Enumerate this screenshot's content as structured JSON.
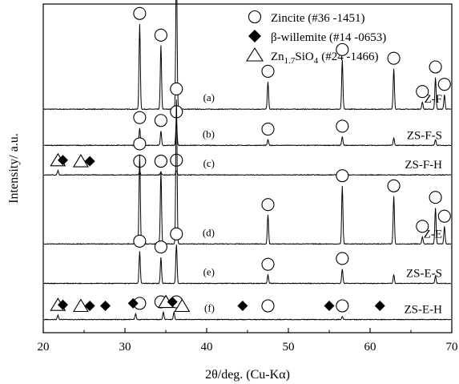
{
  "chart_data": {
    "type": "line",
    "xlabel": "2θ/deg. (Cu-Kα)",
    "ylabel": "Intensity/ a.u.",
    "xlim": [
      20,
      70
    ],
    "xticks": [
      20,
      30,
      40,
      50,
      60,
      70
    ],
    "grid": false,
    "legend_position": "top-right",
    "legend": [
      {
        "symbol": "circle",
        "name": "Zincite",
        "code": "(#36 -1451)"
      },
      {
        "symbol": "diamond",
        "name": "β-willemite",
        "code": "(#14 -0653)"
      },
      {
        "symbol": "triangle",
        "formula_main": "Zn",
        "formula_sub1": "1.7",
        "formula_mid": "SiO",
        "formula_sub2": "4",
        "code": "(#24 -1466)"
      }
    ],
    "zincite_peaks": [
      31.8,
      34.4,
      36.3,
      47.5,
      56.6,
      62.9,
      66.4,
      68.0,
      69.1
    ],
    "series": [
      {
        "label": "(a)",
        "name": "Z-F",
        "baseline": 0.68,
        "peaks": [
          [
            31.8,
            0.59
          ],
          [
            34.4,
            0.44
          ],
          [
            36.3,
            1.0
          ],
          [
            47.5,
            0.19
          ],
          [
            56.6,
            0.34
          ],
          [
            62.9,
            0.28
          ],
          [
            66.4,
            0.05
          ],
          [
            68.0,
            0.22
          ],
          [
            69.1,
            0.1
          ]
        ],
        "markers": [
          {
            "symbol": "circle",
            "x": [
              31.8,
              34.4,
              36.3,
              47.5,
              56.6,
              62.9,
              66.4,
              68.0,
              69.1
            ]
          }
        ]
      },
      {
        "label": "(b)",
        "name": "ZS-F-S",
        "baseline": 0.57,
        "peaks": [
          [
            31.8,
            0.12
          ],
          [
            34.4,
            0.1
          ],
          [
            36.3,
            0.16
          ],
          [
            47.5,
            0.04
          ],
          [
            56.6,
            0.06
          ],
          [
            62.9,
            0.05
          ],
          [
            68.0,
            0.04
          ]
        ],
        "markers": [
          {
            "symbol": "circle",
            "x": [
              31.8,
              34.4,
              36.3,
              47.5,
              56.6
            ]
          }
        ]
      },
      {
        "label": "(c)",
        "name": "ZS-F-H",
        "baseline": 0.48,
        "peaks": [
          [
            21.8,
            0.03
          ],
          [
            31.8,
            0.02
          ],
          [
            34.4,
            0.02
          ],
          [
            36.3,
            0.03
          ],
          [
            56.6,
            0.02
          ]
        ],
        "markers": [
          {
            "symbol": "circle",
            "x": [
              31.8,
              34.4,
              36.3
            ]
          },
          {
            "symbol": "triangle",
            "x": [
              21.8,
              24.6
            ]
          },
          {
            "symbol": "diamond",
            "x": [
              22.4,
              25.7
            ]
          }
        ]
      },
      {
        "label": "(d)",
        "name": "Z-E",
        "baseline": 0.27,
        "peaks": [
          [
            31.8,
            0.62
          ],
          [
            34.4,
            0.5
          ],
          [
            36.3,
            1.0
          ],
          [
            47.5,
            0.2
          ],
          [
            56.6,
            0.4
          ],
          [
            62.9,
            0.33
          ],
          [
            66.4,
            0.05
          ],
          [
            68.0,
            0.25
          ],
          [
            69.1,
            0.12
          ]
        ],
        "markers": [
          {
            "symbol": "circle",
            "x": [
              31.8,
              34.4,
              36.3,
              47.5,
              56.6,
              62.9,
              66.4,
              68.0,
              69.1
            ]
          }
        ]
      },
      {
        "label": "(e)",
        "name": "ZS-E-S",
        "baseline": 0.15,
        "peaks": [
          [
            31.8,
            0.22
          ],
          [
            34.4,
            0.18
          ],
          [
            36.3,
            0.27
          ],
          [
            47.5,
            0.06
          ],
          [
            56.6,
            0.1
          ],
          [
            62.9,
            0.06
          ],
          [
            68.0,
            0.05
          ]
        ],
        "markers": [
          {
            "symbol": "circle",
            "x": [
              31.8,
              34.4,
              36.3,
              47.5,
              56.6
            ]
          }
        ]
      },
      {
        "label": "(f)",
        "name": "ZS-E-H",
        "baseline": 0.04,
        "peaks": [
          [
            21.8,
            0.03
          ],
          [
            31.3,
            0.04
          ],
          [
            34.7,
            0.05
          ],
          [
            36.0,
            0.05
          ],
          [
            56.6,
            0.02
          ]
        ],
        "markers": [
          {
            "symbol": "circle",
            "x": [
              31.8,
              34.4,
              36.3,
              47.5,
              56.6
            ]
          },
          {
            "symbol": "triangle",
            "x": [
              21.8,
              24.6,
              35.0,
              37.0
            ]
          },
          {
            "symbol": "diamond",
            "x": [
              22.4,
              25.7,
              27.6,
              31.0,
              35.8,
              44.4,
              55.0,
              61.2
            ]
          }
        ]
      }
    ]
  }
}
